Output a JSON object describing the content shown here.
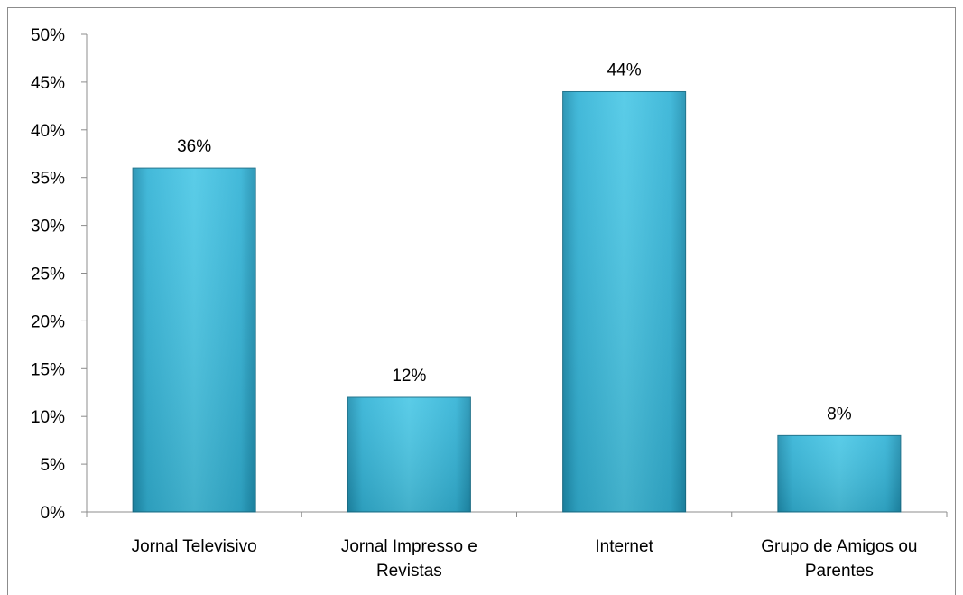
{
  "chart_data": {
    "type": "bar",
    "categories": [
      [
        "Jornal Televisivo"
      ],
      [
        "Jornal Impresso e",
        "Revistas"
      ],
      [
        "Internet"
      ],
      [
        "Grupo de Amigos ou",
        "Parentes"
      ]
    ],
    "values": [
      36,
      12,
      44,
      8
    ],
    "data_labels": [
      "36%",
      "12%",
      "44%",
      "8%"
    ],
    "ylim": [
      0,
      50
    ],
    "yticks": [
      0,
      5,
      10,
      15,
      20,
      25,
      30,
      35,
      40,
      45,
      50
    ],
    "ytick_labels": [
      "0%",
      "5%",
      "10%",
      "15%",
      "20%",
      "25%",
      "30%",
      "35%",
      "40%",
      "45%",
      "50%"
    ],
    "grid": false,
    "legend": "none",
    "colors": {
      "bar_light": "#4cc8e6",
      "bar_mid": "#33b3d6",
      "bar_dark": "#1f8fb0",
      "bar_outline": "#1a6f88",
      "axis": "#8c8c8c"
    }
  }
}
